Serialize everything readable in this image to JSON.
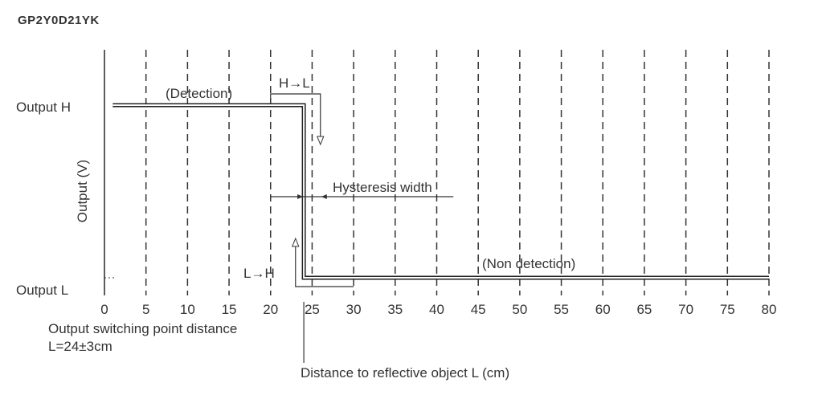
{
  "part_number": "GP2Y0D21YK",
  "chart_data": {
    "type": "line",
    "title": "",
    "xlabel": "Distance to reflective object  L (cm)",
    "ylabel": "Output (V)",
    "xlim": [
      0,
      80
    ],
    "x_ticks": [
      0,
      5,
      10,
      15,
      20,
      25,
      30,
      35,
      40,
      45,
      50,
      55,
      60,
      65,
      70,
      75,
      80
    ],
    "y_levels": [
      "Output H",
      "Output L"
    ],
    "grid": true,
    "series": [
      {
        "name": "",
        "x": [
          1,
          24,
          24,
          25,
          25,
          80
        ],
        "y": [
          "Output H",
          "Output H",
          "Output L",
          "Output L",
          "Output L",
          "Output L"
        ]
      }
    ],
    "annotations": {
      "detection": "(Detection)",
      "non_detection": "(Non detection)",
      "h_to_l": "H→L",
      "l_to_h": "L→H",
      "hysteresis": "Hysteresis width",
      "switching_point_line1": "Output switching point distance",
      "switching_point_line2": "L=24±3cm"
    }
  }
}
